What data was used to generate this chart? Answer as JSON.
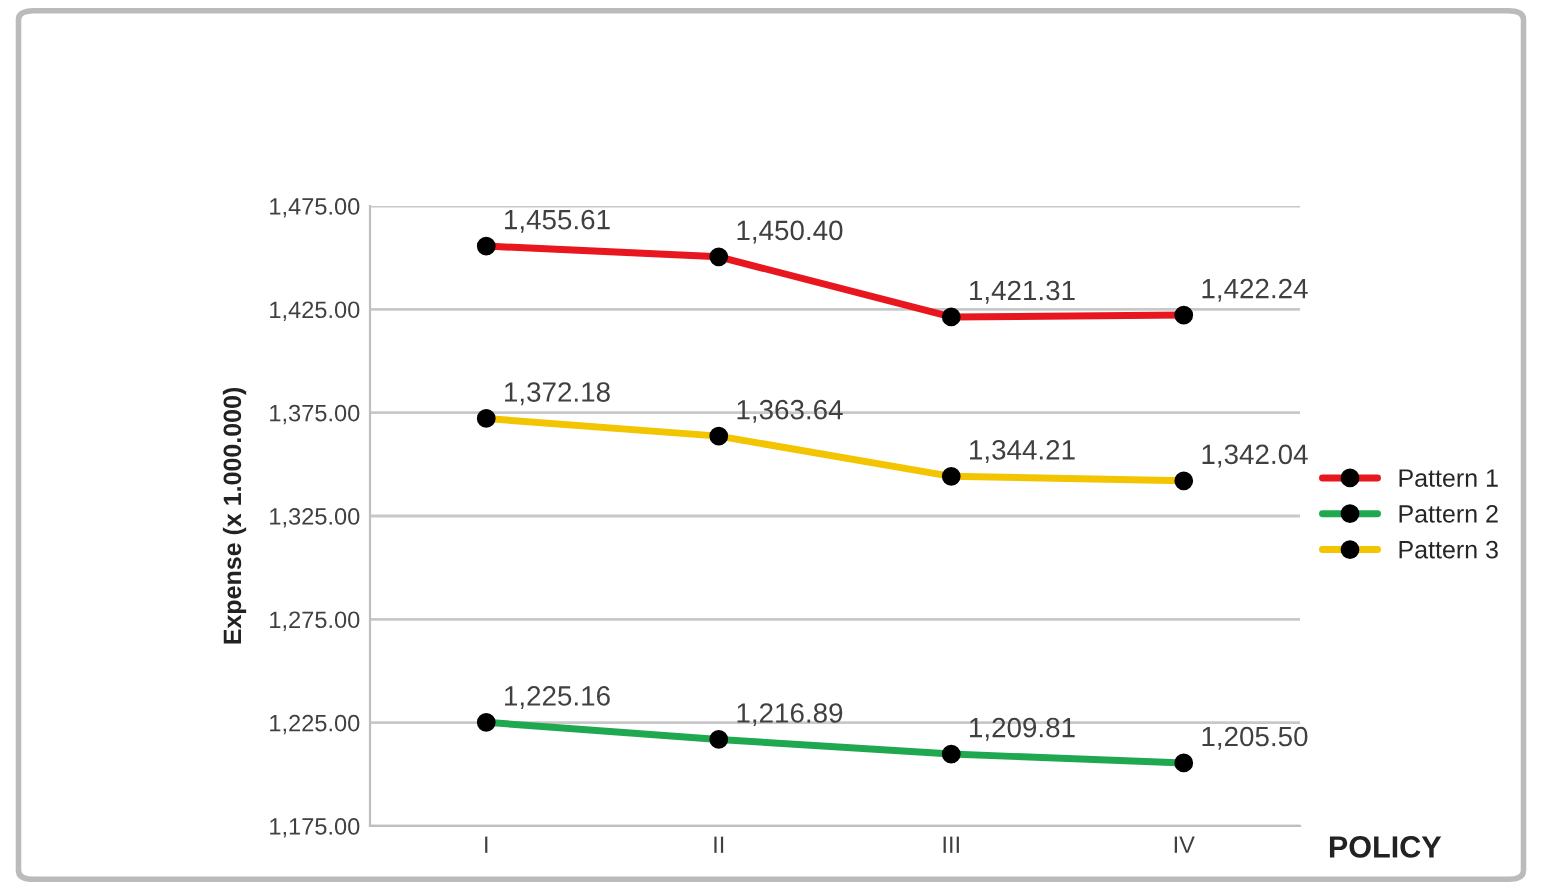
{
  "chart_data": {
    "type": "line",
    "xlabel": "POLICY",
    "ylabel": "Expense (x 1.000.000)",
    "categories": [
      "I",
      "II",
      "III",
      "IV"
    ],
    "series": [
      {
        "name": "Pattern 1",
        "color": "#e8161e",
        "values": [
          1455.61,
          1450.4,
          1421.31,
          1422.24
        ],
        "value_labels": [
          "1,455.61",
          "1,450.40",
          "1,421.31",
          "1,422.24"
        ]
      },
      {
        "name": "Pattern 2",
        "color": "#1fa84f",
        "values": [
          1225.16,
          1216.89,
          1209.81,
          1205.5
        ],
        "value_labels": [
          "1,225.16",
          "1,216.89",
          "1,209.81",
          "1,205.50"
        ]
      },
      {
        "name": "Pattern 3",
        "color": "#f2c500",
        "values": [
          1372.18,
          1363.64,
          1344.21,
          1342.04
        ],
        "value_labels": [
          "1,372.18",
          "1,363.64",
          "1,344.21",
          "1,342.04"
        ]
      }
    ],
    "ylim": [
      1175,
      1475
    ],
    "yticks": [
      {
        "value": 1175,
        "label": "1,175.00"
      },
      {
        "value": 1225,
        "label": "1,225.00"
      },
      {
        "value": 1275,
        "label": "1,275.00"
      },
      {
        "value": 1325,
        "label": "1,325.00"
      },
      {
        "value": 1375,
        "label": "1,375.00"
      },
      {
        "value": 1425,
        "label": "1,425.00"
      },
      {
        "value": 1475,
        "label": "1,475.00"
      }
    ],
    "grid": "y",
    "legend": "right",
    "marker": "circle",
    "line_style": "solid"
  }
}
